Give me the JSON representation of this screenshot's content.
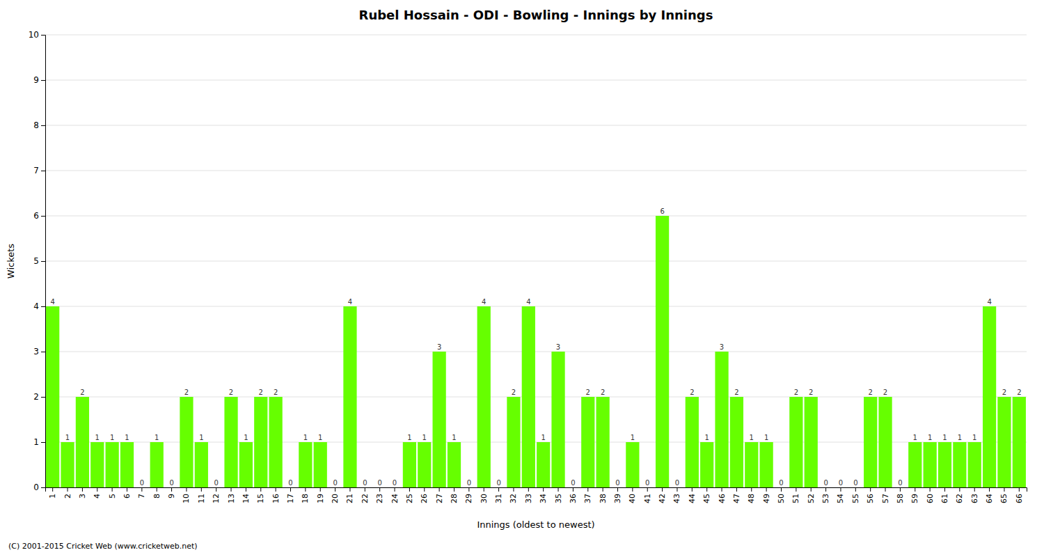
{
  "chart_data": {
    "type": "bar",
    "title": "Rubel Hossain - ODI - Bowling - Innings by Innings",
    "x_label": "Innings (oldest to newest)",
    "y_label": "Wickets",
    "footer": "(C) 2001-2015 Cricket Web (www.cricketweb.net)",
    "categories": [
      "1",
      "2",
      "3",
      "4",
      "5",
      "6",
      "7",
      "8",
      "9",
      "10",
      "11",
      "12",
      "13",
      "14",
      "15",
      "16",
      "17",
      "18",
      "19",
      "20",
      "21",
      "22",
      "23",
      "24",
      "25",
      "26",
      "27",
      "28",
      "29",
      "30",
      "31",
      "32",
      "33",
      "34",
      "35",
      "36",
      "37",
      "38",
      "39",
      "40",
      "41",
      "42",
      "43",
      "44",
      "45",
      "46",
      "47",
      "48",
      "49",
      "50",
      "51",
      "52",
      "53",
      "54",
      "55",
      "56",
      "57",
      "58",
      "59",
      "60",
      "61",
      "62",
      "63",
      "64",
      "65",
      "66"
    ],
    "values": [
      4,
      1,
      2,
      1,
      1,
      1,
      0,
      1,
      0,
      2,
      1,
      0,
      2,
      1,
      2,
      2,
      0,
      1,
      1,
      0,
      4,
      0,
      0,
      0,
      1,
      1,
      3,
      1,
      0,
      4,
      0,
      2,
      4,
      1,
      3,
      0,
      2,
      2,
      0,
      1,
      0,
      6,
      0,
      2,
      1,
      3,
      2,
      1,
      1,
      0,
      2,
      2,
      0,
      0,
      0,
      2,
      2,
      0,
      1,
      1,
      1,
      1,
      1,
      4,
      2,
      2
    ],
    "color": "#66FF00",
    "ylim": [
      0,
      10
    ],
    "yticks": [
      0,
      1,
      2,
      3,
      4,
      5,
      6,
      7,
      8,
      9,
      10
    ],
    "grid": true,
    "data_labels": true
  }
}
